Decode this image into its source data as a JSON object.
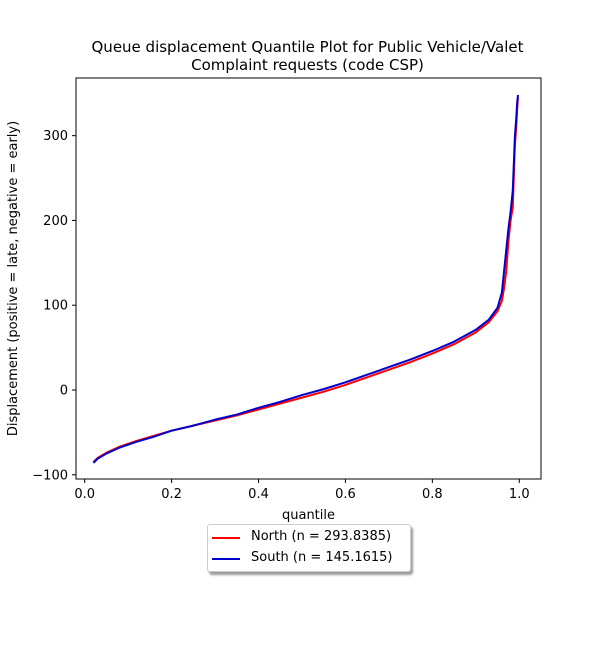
{
  "chart_data": {
    "type": "line",
    "title": "Queue displacement Quantile Plot for Public Vehicle/Valet\nComplaint  requests (code CSP)",
    "xlabel": "quantile",
    "ylabel": "Displacement (positive = late, negative = early)",
    "xlim": [
      -0.02,
      1.05
    ],
    "ylim": [
      -105,
      368
    ],
    "x_ticks": [
      0.0,
      0.2,
      0.4,
      0.6,
      0.8,
      1.0
    ],
    "x_tick_labels": [
      "0.0",
      "0.2",
      "0.4",
      "0.6",
      "0.8",
      "1.0"
    ],
    "y_ticks": [
      -100,
      0,
      100,
      200,
      300
    ],
    "y_tick_labels": [
      "−100",
      "0",
      "100",
      "200",
      "300"
    ],
    "grid": false,
    "legend_position": "below-center",
    "series": [
      {
        "name": "North (n = 293.8385)",
        "color": "#ff0000",
        "x": [
          0.02,
          0.03,
          0.05,
          0.08,
          0.12,
          0.16,
          0.2,
          0.25,
          0.3,
          0.35,
          0.4,
          0.45,
          0.5,
          0.55,
          0.6,
          0.65,
          0.7,
          0.75,
          0.8,
          0.85,
          0.9,
          0.93,
          0.95,
          0.96,
          0.965,
          0.97,
          0.975,
          0.98,
          0.985,
          0.99,
          0.993,
          0.995,
          0.997
        ],
        "y": [
          -85,
          -80,
          -74,
          -67,
          -60,
          -54,
          -48,
          -42,
          -36,
          -30,
          -23,
          -16,
          -9,
          -2,
          6,
          15,
          24,
          33,
          43,
          54,
          68,
          80,
          93,
          105,
          120,
          140,
          175,
          200,
          215,
          290,
          310,
          330,
          345
        ]
      },
      {
        "name": "South (n = 145.1615)",
        "color": "#0000cc",
        "x": [
          0.02,
          0.03,
          0.05,
          0.08,
          0.12,
          0.16,
          0.2,
          0.25,
          0.3,
          0.35,
          0.4,
          0.45,
          0.5,
          0.55,
          0.6,
          0.65,
          0.7,
          0.75,
          0.8,
          0.85,
          0.9,
          0.93,
          0.95,
          0.96,
          0.965,
          0.97,
          0.975,
          0.98,
          0.985,
          0.99,
          0.993,
          0.995,
          0.997
        ],
        "y": [
          -86,
          -81,
          -75,
          -68,
          -61,
          -55,
          -48,
          -42,
          -35,
          -29,
          -21,
          -14,
          -6,
          1,
          9,
          18,
          27,
          36,
          46,
          57,
          71,
          83,
          97,
          115,
          140,
          165,
          190,
          210,
          235,
          300,
          320,
          338,
          348
        ]
      }
    ]
  }
}
